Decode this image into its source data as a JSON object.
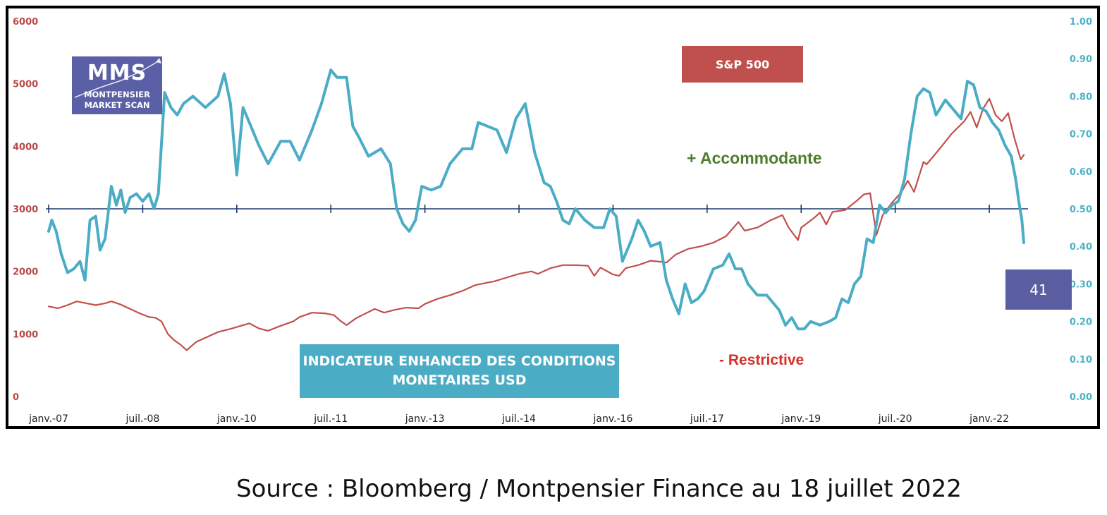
{
  "logo": {
    "main": "MMS",
    "sub1": "MONTPENSIER",
    "sub2": "MARKET SCAN"
  },
  "labels": {
    "sp500": "S&P 500",
    "indicator_line1": "INDICATEUR ENHANCED DES CONDITIONS",
    "indicator_line2": "MONETAIRES USD",
    "accommodante": "+ Accommodante",
    "restrictive": "- Restrictive",
    "current_value": "41"
  },
  "source": "Source : Bloomberg / Montpensier Finance au 18 juillet 2022",
  "colors": {
    "sp500": "#c0504d",
    "indicator": "#4bacc6",
    "reference_line": "#1f3a6e"
  },
  "chart_data": {
    "type": "line",
    "x_tick_labels": [
      "janv.-07",
      "juil.-08",
      "janv.-10",
      "juil.-11",
      "janv.-13",
      "juil.-14",
      "janv.-16",
      "juil.-17",
      "janv.-19",
      "juil.-20",
      "janv.-22"
    ],
    "x_range": [
      2007.0,
      2022.55
    ],
    "y_left": {
      "range": [
        0,
        6000
      ],
      "ticks": [
        0,
        1000,
        2000,
        3000,
        4000,
        5000,
        6000
      ]
    },
    "y_right": {
      "range": [
        0.0,
        1.0
      ],
      "ticks": [
        "0.00",
        "0.10",
        "0.20",
        "0.30",
        "0.40",
        "0.50",
        "0.60",
        "0.70",
        "0.80",
        "0.90",
        "1.00"
      ]
    },
    "reference_line": {
      "axis": "right",
      "value": 0.5
    },
    "series": [
      {
        "name": "S&P 500",
        "axis": "left",
        "points": [
          [
            2007.0,
            1440
          ],
          [
            2007.15,
            1410
          ],
          [
            2007.3,
            1460
          ],
          [
            2007.45,
            1520
          ],
          [
            2007.6,
            1490
          ],
          [
            2007.75,
            1460
          ],
          [
            2007.9,
            1490
          ],
          [
            2008.0,
            1520
          ],
          [
            2008.15,
            1470
          ],
          [
            2008.3,
            1400
          ],
          [
            2008.45,
            1330
          ],
          [
            2008.6,
            1270
          ],
          [
            2008.7,
            1260
          ],
          [
            2008.8,
            1200
          ],
          [
            2008.9,
            1000
          ],
          [
            2009.0,
            900
          ],
          [
            2009.1,
            830
          ],
          [
            2009.2,
            740
          ],
          [
            2009.35,
            870
          ],
          [
            2009.5,
            940
          ],
          [
            2009.7,
            1030
          ],
          [
            2009.9,
            1080
          ],
          [
            2010.0,
            1110
          ],
          [
            2010.2,
            1170
          ],
          [
            2010.35,
            1090
          ],
          [
            2010.5,
            1050
          ],
          [
            2010.7,
            1130
          ],
          [
            2010.9,
            1200
          ],
          [
            2011.0,
            1270
          ],
          [
            2011.2,
            1340
          ],
          [
            2011.4,
            1330
          ],
          [
            2011.55,
            1300
          ],
          [
            2011.65,
            1210
          ],
          [
            2011.75,
            1140
          ],
          [
            2011.9,
            1250
          ],
          [
            2012.0,
            1300
          ],
          [
            2012.2,
            1400
          ],
          [
            2012.35,
            1340
          ],
          [
            2012.5,
            1380
          ],
          [
            2012.7,
            1420
          ],
          [
            2012.9,
            1410
          ],
          [
            2013.0,
            1480
          ],
          [
            2013.2,
            1560
          ],
          [
            2013.4,
            1620
          ],
          [
            2013.6,
            1690
          ],
          [
            2013.8,
            1780
          ],
          [
            2014.0,
            1820
          ],
          [
            2014.1,
            1840
          ],
          [
            2014.3,
            1900
          ],
          [
            2014.5,
            1960
          ],
          [
            2014.7,
            2000
          ],
          [
            2014.8,
            1960
          ],
          [
            2015.0,
            2050
          ],
          [
            2015.2,
            2100
          ],
          [
            2015.4,
            2100
          ],
          [
            2015.6,
            2090
          ],
          [
            2015.7,
            1930
          ],
          [
            2015.8,
            2060
          ],
          [
            2016.0,
            1950
          ],
          [
            2016.1,
            1930
          ],
          [
            2016.2,
            2050
          ],
          [
            2016.4,
            2100
          ],
          [
            2016.6,
            2170
          ],
          [
            2016.8,
            2150
          ],
          [
            2016.85,
            2140
          ],
          [
            2017.0,
            2270
          ],
          [
            2017.2,
            2360
          ],
          [
            2017.4,
            2400
          ],
          [
            2017.6,
            2460
          ],
          [
            2017.8,
            2560
          ],
          [
            2018.0,
            2790
          ],
          [
            2018.1,
            2650
          ],
          [
            2018.3,
            2700
          ],
          [
            2018.5,
            2810
          ],
          [
            2018.7,
            2900
          ],
          [
            2018.8,
            2700
          ],
          [
            2018.95,
            2500
          ],
          [
            2019.0,
            2700
          ],
          [
            2019.2,
            2850
          ],
          [
            2019.3,
            2940
          ],
          [
            2019.4,
            2750
          ],
          [
            2019.5,
            2950
          ],
          [
            2019.7,
            2980
          ],
          [
            2019.9,
            3140
          ],
          [
            2020.0,
            3230
          ],
          [
            2020.1,
            3250
          ],
          [
            2020.2,
            2580
          ],
          [
            2020.3,
            2900
          ],
          [
            2020.45,
            3100
          ],
          [
            2020.6,
            3270
          ],
          [
            2020.7,
            3450
          ],
          [
            2020.8,
            3270
          ],
          [
            2020.95,
            3750
          ],
          [
            2021.0,
            3710
          ],
          [
            2021.2,
            3950
          ],
          [
            2021.4,
            4200
          ],
          [
            2021.6,
            4400
          ],
          [
            2021.7,
            4550
          ],
          [
            2021.8,
            4300
          ],
          [
            2021.9,
            4600
          ],
          [
            2022.0,
            4760
          ],
          [
            2022.1,
            4500
          ],
          [
            2022.2,
            4400
          ],
          [
            2022.3,
            4530
          ],
          [
            2022.4,
            4130
          ],
          [
            2022.5,
            3790
          ],
          [
            2022.55,
            3860
          ]
        ]
      },
      {
        "name": "INDICATEUR ENHANCED DES CONDITIONS MONETAIRES USD",
        "axis": "right",
        "points": [
          [
            2007.0,
            0.44
          ],
          [
            2007.05,
            0.47
          ],
          [
            2007.12,
            0.44
          ],
          [
            2007.2,
            0.38
          ],
          [
            2007.3,
            0.33
          ],
          [
            2007.4,
            0.34
          ],
          [
            2007.5,
            0.36
          ],
          [
            2007.58,
            0.31
          ],
          [
            2007.66,
            0.47
          ],
          [
            2007.75,
            0.48
          ],
          [
            2007.82,
            0.39
          ],
          [
            2007.9,
            0.42
          ],
          [
            2008.0,
            0.56
          ],
          [
            2008.08,
            0.51
          ],
          [
            2008.15,
            0.55
          ],
          [
            2008.22,
            0.49
          ],
          [
            2008.3,
            0.53
          ],
          [
            2008.4,
            0.54
          ],
          [
            2008.5,
            0.52
          ],
          [
            2008.6,
            0.54
          ],
          [
            2008.68,
            0.5
          ],
          [
            2008.75,
            0.54
          ],
          [
            2008.85,
            0.81
          ],
          [
            2008.95,
            0.77
          ],
          [
            2009.05,
            0.75
          ],
          [
            2009.15,
            0.78
          ],
          [
            2009.3,
            0.8
          ],
          [
            2009.5,
            0.77
          ],
          [
            2009.7,
            0.8
          ],
          [
            2009.8,
            0.86
          ],
          [
            2009.9,
            0.78
          ],
          [
            2010.0,
            0.59
          ],
          [
            2010.1,
            0.77
          ],
          [
            2010.2,
            0.73
          ],
          [
            2010.35,
            0.67
          ],
          [
            2010.5,
            0.62
          ],
          [
            2010.7,
            0.68
          ],
          [
            2010.85,
            0.68
          ],
          [
            2011.0,
            0.63
          ],
          [
            2011.2,
            0.71
          ],
          [
            2011.35,
            0.78
          ],
          [
            2011.5,
            0.87
          ],
          [
            2011.6,
            0.85
          ],
          [
            2011.75,
            0.85
          ],
          [
            2011.85,
            0.72
          ],
          [
            2011.95,
            0.69
          ],
          [
            2012.1,
            0.64
          ],
          [
            2012.3,
            0.66
          ],
          [
            2012.45,
            0.62
          ],
          [
            2012.55,
            0.5
          ],
          [
            2012.65,
            0.46
          ],
          [
            2012.75,
            0.44
          ],
          [
            2012.85,
            0.47
          ],
          [
            2012.95,
            0.56
          ],
          [
            2013.1,
            0.55
          ],
          [
            2013.25,
            0.56
          ],
          [
            2013.4,
            0.62
          ],
          [
            2013.6,
            0.66
          ],
          [
            2013.75,
            0.66
          ],
          [
            2013.85,
            0.73
          ],
          [
            2014.0,
            0.72
          ],
          [
            2014.15,
            0.71
          ],
          [
            2014.3,
            0.65
          ],
          [
            2014.45,
            0.74
          ],
          [
            2014.6,
            0.78
          ],
          [
            2014.75,
            0.65
          ],
          [
            2014.9,
            0.57
          ],
          [
            2015.0,
            0.56
          ],
          [
            2015.1,
            0.52
          ],
          [
            2015.2,
            0.47
          ],
          [
            2015.3,
            0.46
          ],
          [
            2015.4,
            0.5
          ],
          [
            2015.55,
            0.47
          ],
          [
            2015.7,
            0.45
          ],
          [
            2015.85,
            0.45
          ],
          [
            2015.95,
            0.5
          ],
          [
            2016.05,
            0.48
          ],
          [
            2016.15,
            0.36
          ],
          [
            2016.3,
            0.42
          ],
          [
            2016.4,
            0.47
          ],
          [
            2016.5,
            0.44
          ],
          [
            2016.6,
            0.4
          ],
          [
            2016.75,
            0.41
          ],
          [
            2016.85,
            0.31
          ],
          [
            2016.95,
            0.26
          ],
          [
            2017.05,
            0.22
          ],
          [
            2017.15,
            0.3
          ],
          [
            2017.25,
            0.25
          ],
          [
            2017.35,
            0.26
          ],
          [
            2017.45,
            0.28
          ],
          [
            2017.6,
            0.34
          ],
          [
            2017.75,
            0.35
          ],
          [
            2017.85,
            0.38
          ],
          [
            2017.95,
            0.34
          ],
          [
            2018.05,
            0.34
          ],
          [
            2018.15,
            0.3
          ],
          [
            2018.3,
            0.27
          ],
          [
            2018.45,
            0.27
          ],
          [
            2018.55,
            0.25
          ],
          [
            2018.65,
            0.23
          ],
          [
            2018.75,
            0.19
          ],
          [
            2018.85,
            0.21
          ],
          [
            2018.95,
            0.18
          ],
          [
            2019.05,
            0.18
          ],
          [
            2019.15,
            0.2
          ],
          [
            2019.3,
            0.19
          ],
          [
            2019.45,
            0.2
          ],
          [
            2019.55,
            0.21
          ],
          [
            2019.65,
            0.26
          ],
          [
            2019.75,
            0.25
          ],
          [
            2019.85,
            0.3
          ],
          [
            2019.95,
            0.32
          ],
          [
            2020.05,
            0.42
          ],
          [
            2020.15,
            0.41
          ],
          [
            2020.25,
            0.51
          ],
          [
            2020.35,
            0.49
          ],
          [
            2020.45,
            0.51
          ],
          [
            2020.55,
            0.52
          ],
          [
            2020.65,
            0.58
          ],
          [
            2020.75,
            0.7
          ],
          [
            2020.85,
            0.8
          ],
          [
            2020.95,
            0.82
          ],
          [
            2021.05,
            0.81
          ],
          [
            2021.15,
            0.75
          ],
          [
            2021.3,
            0.79
          ],
          [
            2021.45,
            0.76
          ],
          [
            2021.55,
            0.74
          ],
          [
            2021.65,
            0.84
          ],
          [
            2021.75,
            0.83
          ],
          [
            2021.85,
            0.77
          ],
          [
            2021.95,
            0.76
          ],
          [
            2022.05,
            0.73
          ],
          [
            2022.15,
            0.71
          ],
          [
            2022.25,
            0.67
          ],
          [
            2022.35,
            0.64
          ],
          [
            2022.42,
            0.58
          ],
          [
            2022.47,
            0.52
          ],
          [
            2022.52,
            0.47
          ],
          [
            2022.55,
            0.41
          ]
        ]
      }
    ]
  }
}
